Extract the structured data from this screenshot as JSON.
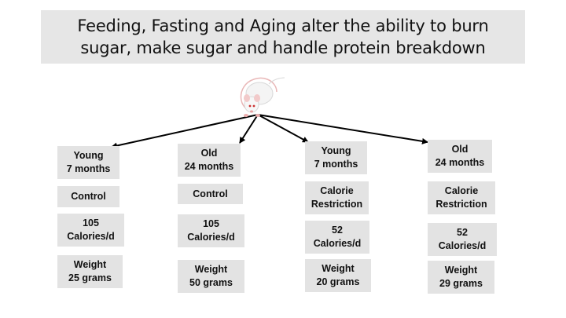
{
  "title": {
    "line1": "Feeding, Fasting and Aging alter the ability to burn",
    "line2": "sugar, make sugar and handle protein breakdown"
  },
  "groups": [
    {
      "age_line1": "Young",
      "age_line2": "7 months",
      "diet_line1": "Control",
      "diet_line2": "",
      "calories_line1": "105",
      "calories_line2": "Calories/d",
      "weight_line1": "Weight",
      "weight_line2": "25 grams"
    },
    {
      "age_line1": "Old",
      "age_line2": "24 months",
      "diet_line1": "Control",
      "diet_line2": "",
      "calories_line1": "105",
      "calories_line2": "Calories/d",
      "weight_line1": "Weight",
      "weight_line2": "50 grams"
    },
    {
      "age_line1": "Young",
      "age_line2": "7 months",
      "diet_line1": "Calorie",
      "diet_line2": "Restriction",
      "calories_line1": "52",
      "calories_line2": "Calories/d",
      "weight_line1": "Weight",
      "weight_line2": "20 grams"
    },
    {
      "age_line1": "Old",
      "age_line2": "24 months",
      "diet_line1": "Calorie",
      "diet_line2": "Restriction",
      "calories_line1": "52",
      "calories_line2": "Calories/d",
      "weight_line1": "Weight",
      "weight_line2": "29 grams"
    }
  ],
  "colors": {
    "box_fill": "#e3e3e3",
    "title_fill": "#e6e6e6",
    "arrow": "#000000"
  },
  "icons": {
    "source": "rat-icon"
  }
}
